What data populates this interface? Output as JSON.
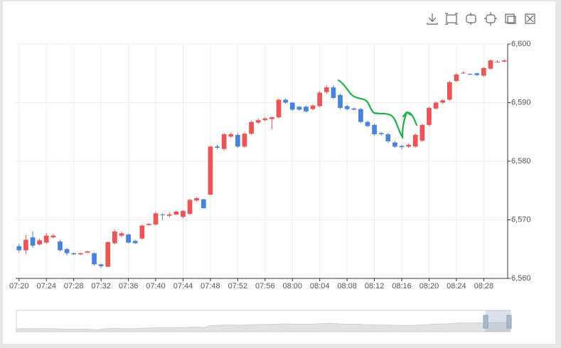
{
  "chart_data": {
    "type": "candlestick",
    "categories": [
      "07:20",
      null,
      null,
      null,
      "07:24",
      null,
      null,
      null,
      "07:28",
      null,
      null,
      null,
      "07:32",
      null,
      null,
      null,
      "07:36",
      null,
      null,
      null,
      "07:40",
      null,
      null,
      null,
      "07:44",
      null,
      null,
      null,
      "07:48",
      null,
      null,
      null,
      "07:52",
      null,
      null,
      null,
      "07:56",
      null,
      null,
      null,
      "08:00",
      null,
      null,
      null,
      "08:04",
      null,
      null,
      null,
      "08:08",
      null,
      null,
      null,
      "08:12",
      null,
      null,
      null,
      "08:16",
      null,
      null,
      null,
      "08:20",
      null,
      null,
      null,
      "08:24",
      null,
      null,
      null,
      "08:28",
      null,
      null,
      null
    ],
    "open": [
      6565.5,
      6564.8,
      6567.0,
      6565.8,
      6566.1,
      6567.0,
      6566.3,
      6565.0,
      6564.3,
      6564.1,
      6564.4,
      6564.3,
      6562.4,
      6562.0,
      6566.0,
      6567.3,
      6567.5,
      6566.4,
      6566.8,
      6569.1,
      6569.2,
      6570.9,
      6570.7,
      6570.9,
      6570.5,
      6571.0,
      6573.3,
      6573.5,
      6574.3,
      6582.5,
      6582.1,
      6584.2,
      6584.5,
      6582.5,
      6584.7,
      6586.6,
      6587.0,
      6587.2,
      6587.5,
      6590.5,
      6590.0,
      6589.3,
      6589.3,
      6588.9,
      6589.4,
      6591.8,
      6592.6,
      6591.3,
      6589.4,
      6589.0,
      6588.9,
      6586.7,
      6586.2,
      6584.8,
      6584.6,
      6583.2,
      6582.6,
      6582.5,
      6582.5,
      6583.5,
      6586.2,
      6589.0,
      6590.0,
      6590.5,
      6593.7,
      6595.0,
      6594.9,
      6595.0,
      6594.6,
      6595.8,
      6596.9,
      6597.0
    ],
    "close": [
      6564.8,
      6566.6,
      6565.6,
      6566.5,
      6567.3,
      6567.3,
      6564.8,
      6564.3,
      6564.1,
      6564.3,
      6564.6,
      6562.4,
      6562.1,
      6566.2,
      6568.0,
      6567.7,
      6566.1,
      6566.0,
      6569.0,
      6569.3,
      6571.1,
      6570.8,
      6570.9,
      6571.4,
      6571.5,
      6573.4,
      6573.7,
      6572.0,
      6582.5,
      6582.3,
      6584.6,
      6584.6,
      6582.5,
      6584.7,
      6586.7,
      6587.0,
      6587.3,
      6587.5,
      6590.5,
      6590.0,
      6588.8,
      6588.8,
      6588.5,
      6589.5,
      6591.7,
      6592.6,
      6590.8,
      6589.1,
      6588.9,
      6588.8,
      6586.7,
      6586.0,
      6584.6,
      6584.6,
      6583.4,
      6582.5,
      6582.4,
      6582.8,
      6584.5,
      6586.2,
      6589.1,
      6590.0,
      6590.4,
      6593.5,
      6594.8,
      6595.1,
      6594.8,
      6594.7,
      6595.9,
      6597.2,
      6597.0,
      6597.2
    ],
    "low": [
      6564.4,
      6564.2,
      6565.2,
      6565.6,
      6565.9,
      6566.9,
      6564.6,
      6563.9,
      6564.0,
      6564.0,
      6564.3,
      6562.2,
      6561.8,
      6561.9,
      6565.8,
      6567.0,
      6566.0,
      6565.9,
      6566.6,
      6569.0,
      6569.0,
      6570.0,
      6570.4,
      6570.8,
      6570.3,
      6570.9,
      6573.1,
      6571.9,
      6574.2,
      6582.1,
      6581.8,
      6584.0,
      6582.3,
      6582.3,
      6584.5,
      6586.4,
      6586.8,
      6585.4,
      6587.3,
      6589.8,
      6588.6,
      6588.6,
      6588.3,
      6588.7,
      6589.2,
      6591.5,
      6590.6,
      6588.9,
      6588.7,
      6588.7,
      6586.5,
      6585.8,
      6584.4,
      6584.4,
      6583.1,
      6582.3,
      6582.0,
      6582.3,
      6582.3,
      6583.3,
      6586.0,
      6588.8,
      6589.8,
      6590.3,
      6593.5,
      6594.9,
      6594.7,
      6594.5,
      6594.4,
      6595.6,
      6596.8,
      6596.9
    ],
    "high": [
      6565.9,
      6567.4,
      6568.0,
      6566.8,
      6567.7,
      6567.6,
      6566.6,
      6565.2,
      6564.4,
      6564.4,
      6564.7,
      6564.4,
      6562.5,
      6566.3,
      6568.3,
      6568.0,
      6567.6,
      6566.6,
      6569.2,
      6569.4,
      6571.4,
      6571.2,
      6571.3,
      6571.6,
      6571.7,
      6573.6,
      6573.9,
      6573.6,
      6582.7,
      6582.8,
      6584.8,
      6584.9,
      6584.8,
      6584.9,
      6586.9,
      6587.3,
      6587.5,
      6587.6,
      6590.7,
      6590.7,
      6590.1,
      6589.4,
      6589.5,
      6589.7,
      6592.0,
      6593.0,
      6593.0,
      6591.5,
      6589.6,
      6589.2,
      6589.1,
      6586.9,
      6586.4,
      6585.0,
      6584.8,
      6583.4,
      6582.8,
      6583.0,
      6584.7,
      6586.4,
      6589.3,
      6590.2,
      6590.6,
      6593.7,
      6595.0,
      6595.3,
      6595.0,
      6595.1,
      6596.1,
      6597.4,
      6597.2,
      6597.4
    ],
    "up_color": "#ea5557",
    "down_color": "#4b82db",
    "ylim": [
      6560,
      6600
    ],
    "yticks": [
      {
        "value": 6560,
        "label": "6,560"
      },
      {
        "value": 6570,
        "label": "6,570"
      },
      {
        "value": 6580,
        "label": "6,580"
      },
      {
        "value": 6590,
        "label": "6,590"
      },
      {
        "value": 6600,
        "label": "6,600"
      }
    ],
    "grid": true
  }
}
